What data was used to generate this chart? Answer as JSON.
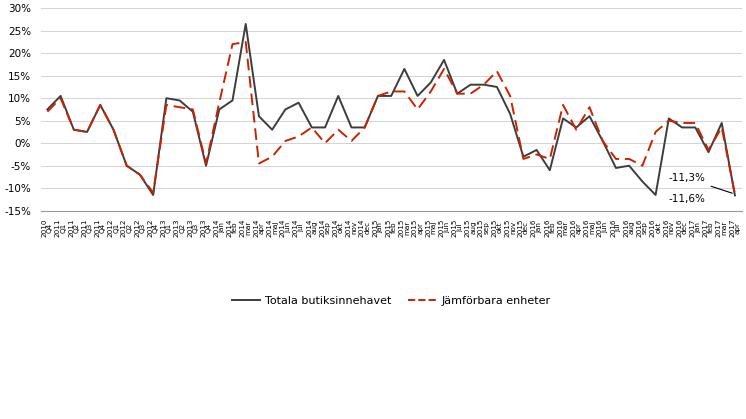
{
  "labels": [
    "2010\nQ4",
    "2011\nQ1",
    "2011\nQ2",
    "2011\nQ3",
    "2011\nQ4",
    "2012\nQ1",
    "2012\nQ2",
    "2012\nQ3",
    "2012\nQ4",
    "2013\nQ1",
    "2013\nQ2",
    "2013\nQ3",
    "2013\nQ4",
    "2014\njan",
    "2014\nfeb",
    "2014\nmar",
    "2014\napr",
    "2014\nmaj",
    "2014\njun",
    "2014\njul",
    "2014\naug",
    "2014\nsep",
    "2014\nokt",
    "2014\nnov",
    "2014\ndec",
    "2015\njan",
    "2015\nfeb",
    "2015\nmar",
    "2015\napr",
    "2015\nmaj",
    "2015\njun",
    "2015\njul",
    "2015\naug",
    "2015\nsep",
    "2015\nokt",
    "2015\nnov",
    "2015\ndec",
    "2016\njan",
    "2016\nfeb",
    "2016\nmar",
    "2016\napr",
    "2016\nmaj",
    "2016\njun",
    "2016\njul",
    "2016\naug",
    "2016\nsep",
    "2016\nokt",
    "2016\nnov",
    "2016\ndec",
    "2017\njan",
    "2017\nfeb",
    "2017\nmar",
    "2017\napr"
  ],
  "total": [
    7.5,
    10.5,
    3.0,
    2.5,
    8.5,
    3.0,
    -5.0,
    -7.0,
    -11.5,
    10.0,
    9.5,
    7.0,
    -5.0,
    7.5,
    9.5,
    26.5,
    6.0,
    3.0,
    7.5,
    9.0,
    3.5,
    3.5,
    10.5,
    3.5,
    3.5,
    10.5,
    10.5,
    16.5,
    10.5,
    13.5,
    18.5,
    11.0,
    13.0,
    13.0,
    12.5,
    6.5,
    -3.0,
    -1.5,
    -6.0,
    5.5,
    3.5,
    6.0,
    0.5,
    -5.5,
    -5.0,
    -8.5,
    -11.5,
    5.5,
    3.5,
    3.5,
    -2.0,
    4.5,
    -11.6
  ],
  "comparable": [
    7.0,
    10.0,
    3.0,
    2.5,
    8.5,
    3.0,
    -5.0,
    -7.0,
    -11.0,
    8.5,
    8.0,
    7.5,
    -4.5,
    9.0,
    22.0,
    22.5,
    -4.5,
    -3.0,
    0.5,
    1.5,
    3.5,
    0.0,
    3.0,
    0.5,
    3.5,
    10.5,
    11.5,
    11.5,
    7.5,
    11.5,
    16.5,
    11.0,
    11.0,
    13.0,
    16.0,
    10.5,
    -3.5,
    -2.5,
    -3.5,
    8.5,
    3.0,
    8.0,
    0.5,
    -3.5,
    -3.5,
    -5.0,
    2.5,
    5.0,
    4.5,
    4.5,
    -1.5,
    3.5,
    -11.3
  ],
  "ylim": [
    -15,
    30
  ],
  "yticks": [
    -15,
    -10,
    -5,
    0,
    5,
    10,
    15,
    20,
    25,
    30
  ],
  "line_color_total": "#3d3d3d",
  "line_color_comparable": "#cc2200",
  "annotation_total": "-11,6%",
  "annotation_comparable": "-11,3%",
  "legend_total": "Totala butiksinnehavet",
  "legend_comparable": "Jämförbara enheter",
  "background_color": "#ffffff",
  "grid_color": "#cccccc"
}
